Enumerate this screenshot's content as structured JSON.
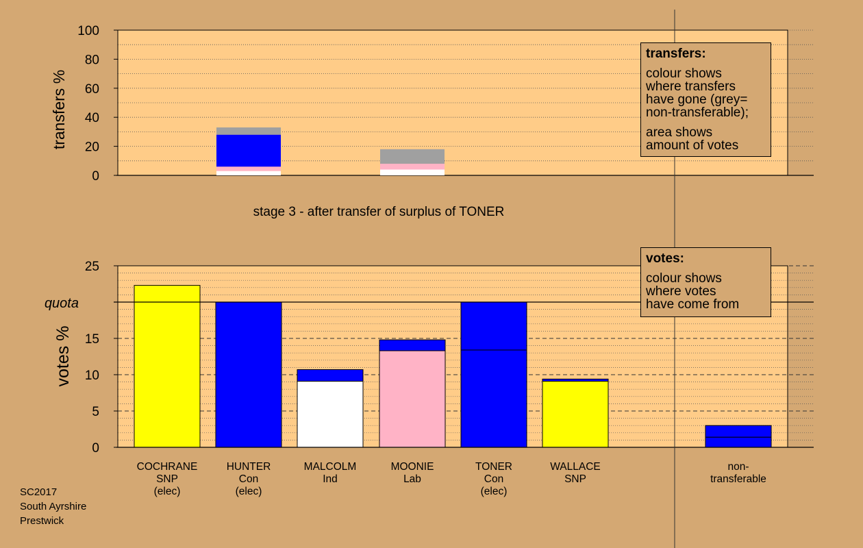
{
  "colors": {
    "background": "#d4a873",
    "plot_background": "#ffcc88",
    "SNP": "#ffff00",
    "Con": "#0000ff",
    "Ind": "#ffffff",
    "Lab": "#ffb3c6",
    "non_transferable": "#a0a0a0"
  },
  "chart_data": [
    {
      "type": "bar",
      "stacked": true,
      "ylabel": "transfers %",
      "ylim": [
        0,
        100
      ],
      "yticks": [
        0,
        20,
        40,
        60,
        80,
        100
      ],
      "categories": [
        "HUNTER Con (elec)",
        "MOONIE Lab"
      ],
      "bars": [
        {
          "category": "HUNTER Con (elec)",
          "segments": [
            {
              "from": "Ind",
              "value": 3.0
            },
            {
              "from": "Lab",
              "value": 3.0
            },
            {
              "from": "Con",
              "value": 22.0
            },
            {
              "from": "non-transferable",
              "value": 5.0
            }
          ]
        },
        {
          "category": "MOONIE Lab",
          "segments": [
            {
              "from": "Ind",
              "value": 4.0
            },
            {
              "from": "Lab",
              "value": 4.0
            },
            {
              "from": "non-transferable",
              "value": 10.0
            }
          ]
        }
      ],
      "legend": {
        "title": "transfers:",
        "lines1": [
          "colour shows",
          "where transfers",
          "have gone (grey=",
          "non-transferable);"
        ],
        "lines2": [
          "area shows",
          "amount of votes"
        ]
      },
      "grid": true
    },
    {
      "type": "bar",
      "stacked": true,
      "subtitle": "stage 3 - after transfer of surplus of TONER",
      "ylabel": "votes %",
      "ylim": [
        0,
        25
      ],
      "yticks": [
        0,
        5,
        10,
        15,
        20,
        25
      ],
      "quota": 20,
      "quota_label": "quota",
      "candidates": [
        {
          "name": "COCHRANE",
          "party": "SNP",
          "status": "(elec)",
          "segments": [
            {
              "from": "SNP",
              "value": 22.3
            }
          ]
        },
        {
          "name": "HUNTER",
          "party": "Con",
          "status": "(elec)",
          "segments": [
            {
              "from": "Con",
              "value": 20.0
            }
          ]
        },
        {
          "name": "MALCOLM",
          "party": "Ind",
          "status": "",
          "segments": [
            {
              "from": "Ind",
              "value": 9.1
            },
            {
              "from": "Con",
              "value": 1.6
            }
          ]
        },
        {
          "name": "MOONIE",
          "party": "Lab",
          "status": "",
          "segments": [
            {
              "from": "Lab",
              "value": 13.3
            },
            {
              "from": "Con",
              "value": 1.5
            }
          ]
        },
        {
          "name": "TONER",
          "party": "Con",
          "status": "(elec)",
          "segments": [
            {
              "from": "Con",
              "value": 13.4
            },
            {
              "from": "Con",
              "value": 6.6
            }
          ]
        },
        {
          "name": "WALLACE",
          "party": "SNP",
          "status": "",
          "segments": [
            {
              "from": "SNP",
              "value": 9.1
            },
            {
              "from": "Con",
              "value": 0.3
            }
          ]
        }
      ],
      "non_transferable": {
        "label1": "non-",
        "label2": "transferable",
        "segments": [
          {
            "from": "Con",
            "value": 1.4
          },
          {
            "from": "Con",
            "value": 1.6
          }
        ]
      },
      "legend": {
        "title": "votes:",
        "lines": [
          "colour shows",
          "where votes",
          "have come from"
        ]
      },
      "grid": true
    }
  ],
  "footer": {
    "line1": "SC2017",
    "line2": "South Ayrshire",
    "line3": "Prestwick"
  }
}
